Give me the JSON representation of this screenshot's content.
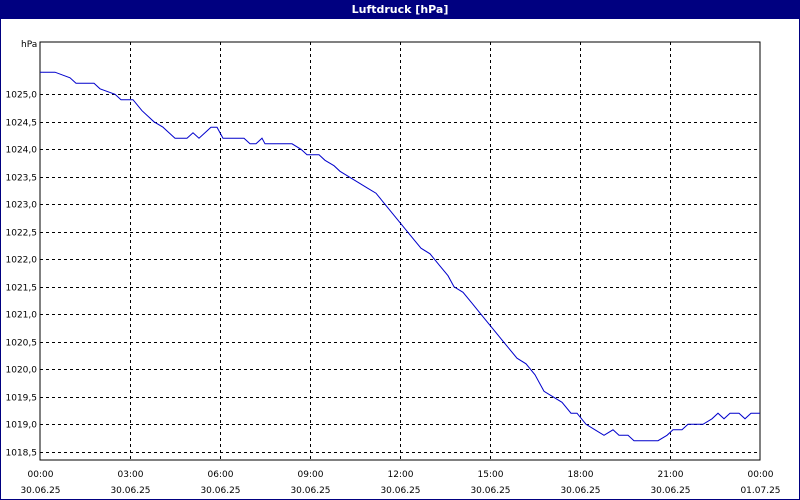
{
  "window": {
    "title": "Luftdruck [hPa]"
  },
  "chart_data": {
    "type": "line",
    "title": "Luftdruck [hPa]",
    "ylabel": "hPa",
    "xlabel": "",
    "ylim": [
      1018.35,
      1025.95
    ],
    "y_ticks": [
      "1018,5",
      "1019,0",
      "1019,5",
      "1020,0",
      "1020,5",
      "1021,0",
      "1021,5",
      "1022,0",
      "1022,5",
      "1023,0",
      "1023,5",
      "1024,0",
      "1024,5",
      "1025,0"
    ],
    "y_tick_values": [
      1018.5,
      1019.0,
      1019.5,
      1020.0,
      1020.5,
      1021.0,
      1021.5,
      1022.0,
      1022.5,
      1023.0,
      1023.5,
      1024.0,
      1024.5,
      1025.0
    ],
    "xlim_hours": [
      0,
      24
    ],
    "x_ticks": [
      {
        "time": "00:00",
        "date": "30.06.25"
      },
      {
        "time": "03:00",
        "date": "30.06.25"
      },
      {
        "time": "06:00",
        "date": "30.06.25"
      },
      {
        "time": "09:00",
        "date": "30.06.25"
      },
      {
        "time": "12:00",
        "date": "30.06.25"
      },
      {
        "time": "15:00",
        "date": "30.06.25"
      },
      {
        "time": "18:00",
        "date": "30.06.25"
      },
      {
        "time": "21:00",
        "date": "30.06.25"
      },
      {
        "time": "00:00",
        "date": "01.07.25"
      }
    ],
    "grid": true,
    "series": [
      {
        "color": "#0000cc",
        "points": [
          [
            0,
            1025.4
          ],
          [
            0.5,
            1025.4
          ],
          [
            1,
            1025.3
          ],
          [
            1.2,
            1025.2
          ],
          [
            1.8,
            1025.2
          ],
          [
            2,
            1025.1
          ],
          [
            2.5,
            1025.0
          ],
          [
            2.7,
            1024.9
          ],
          [
            3.1,
            1024.9
          ],
          [
            3.4,
            1024.7
          ],
          [
            3.8,
            1024.5
          ],
          [
            4.1,
            1024.4
          ],
          [
            4.3,
            1024.3
          ],
          [
            4.5,
            1024.2
          ],
          [
            4.9,
            1024.2
          ],
          [
            5.1,
            1024.3
          ],
          [
            5.3,
            1024.2
          ],
          [
            5.5,
            1024.3
          ],
          [
            5.7,
            1024.4
          ],
          [
            5.9,
            1024.4
          ],
          [
            6.1,
            1024.2
          ],
          [
            6.4,
            1024.2
          ],
          [
            6.8,
            1024.2
          ],
          [
            7.0,
            1024.1
          ],
          [
            7.2,
            1024.1
          ],
          [
            7.4,
            1024.2
          ],
          [
            7.5,
            1024.1
          ],
          [
            8.0,
            1024.1
          ],
          [
            8.4,
            1024.1
          ],
          [
            8.7,
            1024.0
          ],
          [
            8.9,
            1023.9
          ],
          [
            9.3,
            1023.9
          ],
          [
            9.5,
            1023.8
          ],
          [
            9.8,
            1023.7
          ],
          [
            10.0,
            1023.6
          ],
          [
            10.3,
            1023.5
          ],
          [
            10.6,
            1023.4
          ],
          [
            10.9,
            1023.3
          ],
          [
            11.2,
            1023.2
          ],
          [
            11.5,
            1023.0
          ],
          [
            11.8,
            1022.8
          ],
          [
            12.1,
            1022.6
          ],
          [
            12.4,
            1022.4
          ],
          [
            12.7,
            1022.2
          ],
          [
            13.0,
            1022.1
          ],
          [
            13.3,
            1021.9
          ],
          [
            13.6,
            1021.7
          ],
          [
            13.8,
            1021.5
          ],
          [
            14.1,
            1021.4
          ],
          [
            14.4,
            1021.2
          ],
          [
            14.7,
            1021.0
          ],
          [
            15.0,
            1020.8
          ],
          [
            15.3,
            1020.6
          ],
          [
            15.6,
            1020.4
          ],
          [
            15.9,
            1020.2
          ],
          [
            16.2,
            1020.1
          ],
          [
            16.5,
            1019.9
          ],
          [
            16.8,
            1019.6
          ],
          [
            17.1,
            1019.5
          ],
          [
            17.4,
            1019.4
          ],
          [
            17.7,
            1019.2
          ],
          [
            17.9,
            1019.2
          ],
          [
            18.2,
            1019.0
          ],
          [
            18.5,
            1018.9
          ],
          [
            18.8,
            1018.8
          ],
          [
            19.1,
            1018.9
          ],
          [
            19.3,
            1018.8
          ],
          [
            19.6,
            1018.8
          ],
          [
            19.8,
            1018.7
          ],
          [
            20.6,
            1018.7
          ],
          [
            20.9,
            1018.8
          ],
          [
            21.1,
            1018.9
          ],
          [
            21.4,
            1018.9
          ],
          [
            21.6,
            1019.0
          ],
          [
            22.1,
            1019.0
          ],
          [
            22.4,
            1019.1
          ],
          [
            22.6,
            1019.2
          ],
          [
            22.8,
            1019.1
          ],
          [
            23.0,
            1019.2
          ],
          [
            23.3,
            1019.2
          ],
          [
            23.5,
            1019.1
          ],
          [
            23.7,
            1019.2
          ],
          [
            24.0,
            1019.2
          ]
        ]
      }
    ]
  }
}
